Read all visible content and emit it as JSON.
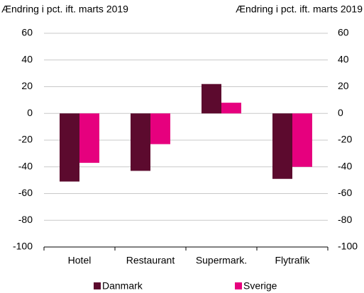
{
  "chart_data": {
    "type": "bar",
    "y_label": "Ændring i pct. ift. marts 2019",
    "y2_label": "Ændring i pct. ift. marts 2019",
    "categories": [
      "Hotel",
      "Restaurant",
      "Supermark.",
      "Flytrafik"
    ],
    "series": [
      {
        "name": "Danmark",
        "color": "#5c0a2e",
        "values": [
          -51,
          -43,
          22,
          -49
        ]
      },
      {
        "name": "Sverige",
        "color": "#e6007e",
        "values": [
          -37,
          -23,
          8,
          -40
        ]
      }
    ],
    "ylim": [
      -100,
      60
    ],
    "yticks": [
      -100,
      -80,
      -60,
      -40,
      -20,
      0,
      20,
      40,
      60
    ],
    "y2lim": [
      -100,
      60
    ],
    "y2ticks": [
      -100,
      -80,
      -60,
      -40,
      -20,
      0,
      20,
      40,
      60
    ],
    "grid": true,
    "legend": "bottom"
  }
}
